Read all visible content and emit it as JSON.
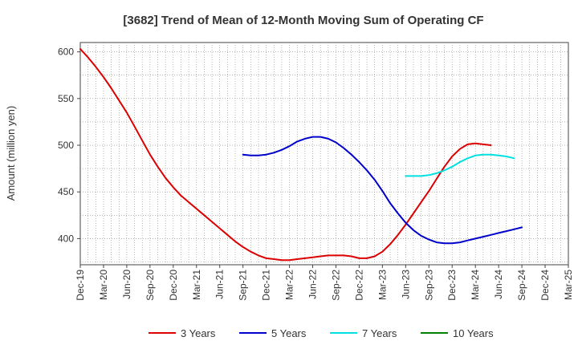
{
  "chart_data": {
    "type": "line",
    "title": "[3682]  Trend of Mean of 12-Month Moving Sum of Operating CF",
    "xlabel": "",
    "ylabel": "Amount (million yen)",
    "ylim": [
      372,
      610
    ],
    "yticks": [
      400,
      450,
      500,
      550,
      600
    ],
    "x_tick_labels": [
      "Dec-19",
      "Mar-20",
      "Jun-20",
      "Sep-20",
      "Dec-20",
      "Mar-21",
      "Jun-21",
      "Sep-21",
      "Dec-21",
      "Mar-22",
      "Jun-22",
      "Sep-22",
      "Dec-22",
      "Mar-23",
      "Jun-23",
      "Sep-23",
      "Dec-23",
      "Mar-24",
      "Jun-24",
      "Sep-24",
      "Dec-24",
      "Mar-25"
    ],
    "grid": true,
    "legend_position": "bottom",
    "series": [
      {
        "name": "3 Years",
        "color": "#dd0000",
        "points": [
          [
            0,
            603
          ],
          [
            1,
            594
          ],
          [
            2,
            584
          ],
          [
            3,
            573
          ],
          [
            4,
            561
          ],
          [
            5,
            548
          ],
          [
            6,
            535
          ],
          [
            7,
            520
          ],
          [
            8,
            505
          ],
          [
            9,
            490
          ],
          [
            10,
            477
          ],
          [
            11,
            465
          ],
          [
            12,
            455
          ],
          [
            13,
            446
          ],
          [
            14,
            439
          ],
          [
            15,
            432
          ],
          [
            16,
            425
          ],
          [
            17,
            418
          ],
          [
            18,
            411
          ],
          [
            19,
            404
          ],
          [
            20,
            397
          ],
          [
            21,
            391
          ],
          [
            22,
            386
          ],
          [
            23,
            382
          ],
          [
            24,
            379
          ],
          [
            25,
            378
          ],
          [
            26,
            377
          ],
          [
            27,
            377
          ],
          [
            28,
            378
          ],
          [
            29,
            379
          ],
          [
            30,
            380
          ],
          [
            31,
            381
          ],
          [
            32,
            382
          ],
          [
            33,
            382
          ],
          [
            34,
            382
          ],
          [
            35,
            381
          ],
          [
            36,
            379
          ],
          [
            37,
            379
          ],
          [
            38,
            381
          ],
          [
            39,
            386
          ],
          [
            40,
            394
          ],
          [
            41,
            404
          ],
          [
            42,
            415
          ],
          [
            43,
            427
          ],
          [
            44,
            439
          ],
          [
            45,
            451
          ],
          [
            46,
            464
          ],
          [
            47,
            477
          ],
          [
            48,
            488
          ],
          [
            49,
            496
          ],
          [
            50,
            501
          ],
          [
            51,
            502
          ],
          [
            52,
            501
          ],
          [
            53,
            500
          ]
        ]
      },
      {
        "name": "5 Years",
        "color": "#0000cc",
        "points": [
          [
            21,
            490
          ],
          [
            22,
            489
          ],
          [
            23,
            489
          ],
          [
            24,
            490
          ],
          [
            25,
            492
          ],
          [
            26,
            495
          ],
          [
            27,
            499
          ],
          [
            28,
            504
          ],
          [
            29,
            507
          ],
          [
            30,
            509
          ],
          [
            31,
            509
          ],
          [
            32,
            507
          ],
          [
            33,
            503
          ],
          [
            34,
            497
          ],
          [
            35,
            490
          ],
          [
            36,
            482
          ],
          [
            37,
            473
          ],
          [
            38,
            463
          ],
          [
            39,
            451
          ],
          [
            40,
            438
          ],
          [
            41,
            427
          ],
          [
            42,
            417
          ],
          [
            43,
            409
          ],
          [
            44,
            403
          ],
          [
            45,
            399
          ],
          [
            46,
            396
          ],
          [
            47,
            395
          ],
          [
            48,
            395
          ],
          [
            49,
            396
          ],
          [
            50,
            398
          ],
          [
            51,
            400
          ],
          [
            52,
            402
          ],
          [
            53,
            404
          ],
          [
            54,
            406
          ],
          [
            55,
            408
          ],
          [
            56,
            410
          ],
          [
            57,
            412
          ]
        ]
      },
      {
        "name": "7 Years",
        "color": "#00e0e0",
        "points": [
          [
            42,
            467
          ],
          [
            43,
            467
          ],
          [
            44,
            467
          ],
          [
            45,
            468
          ],
          [
            46,
            470
          ],
          [
            47,
            473
          ],
          [
            48,
            477
          ],
          [
            49,
            482
          ],
          [
            50,
            486
          ],
          [
            51,
            489
          ],
          [
            52,
            490
          ],
          [
            53,
            490
          ],
          [
            54,
            489
          ],
          [
            55,
            488
          ],
          [
            56,
            486
          ]
        ]
      },
      {
        "name": "10 Years",
        "color": "#008000",
        "points": []
      }
    ]
  }
}
